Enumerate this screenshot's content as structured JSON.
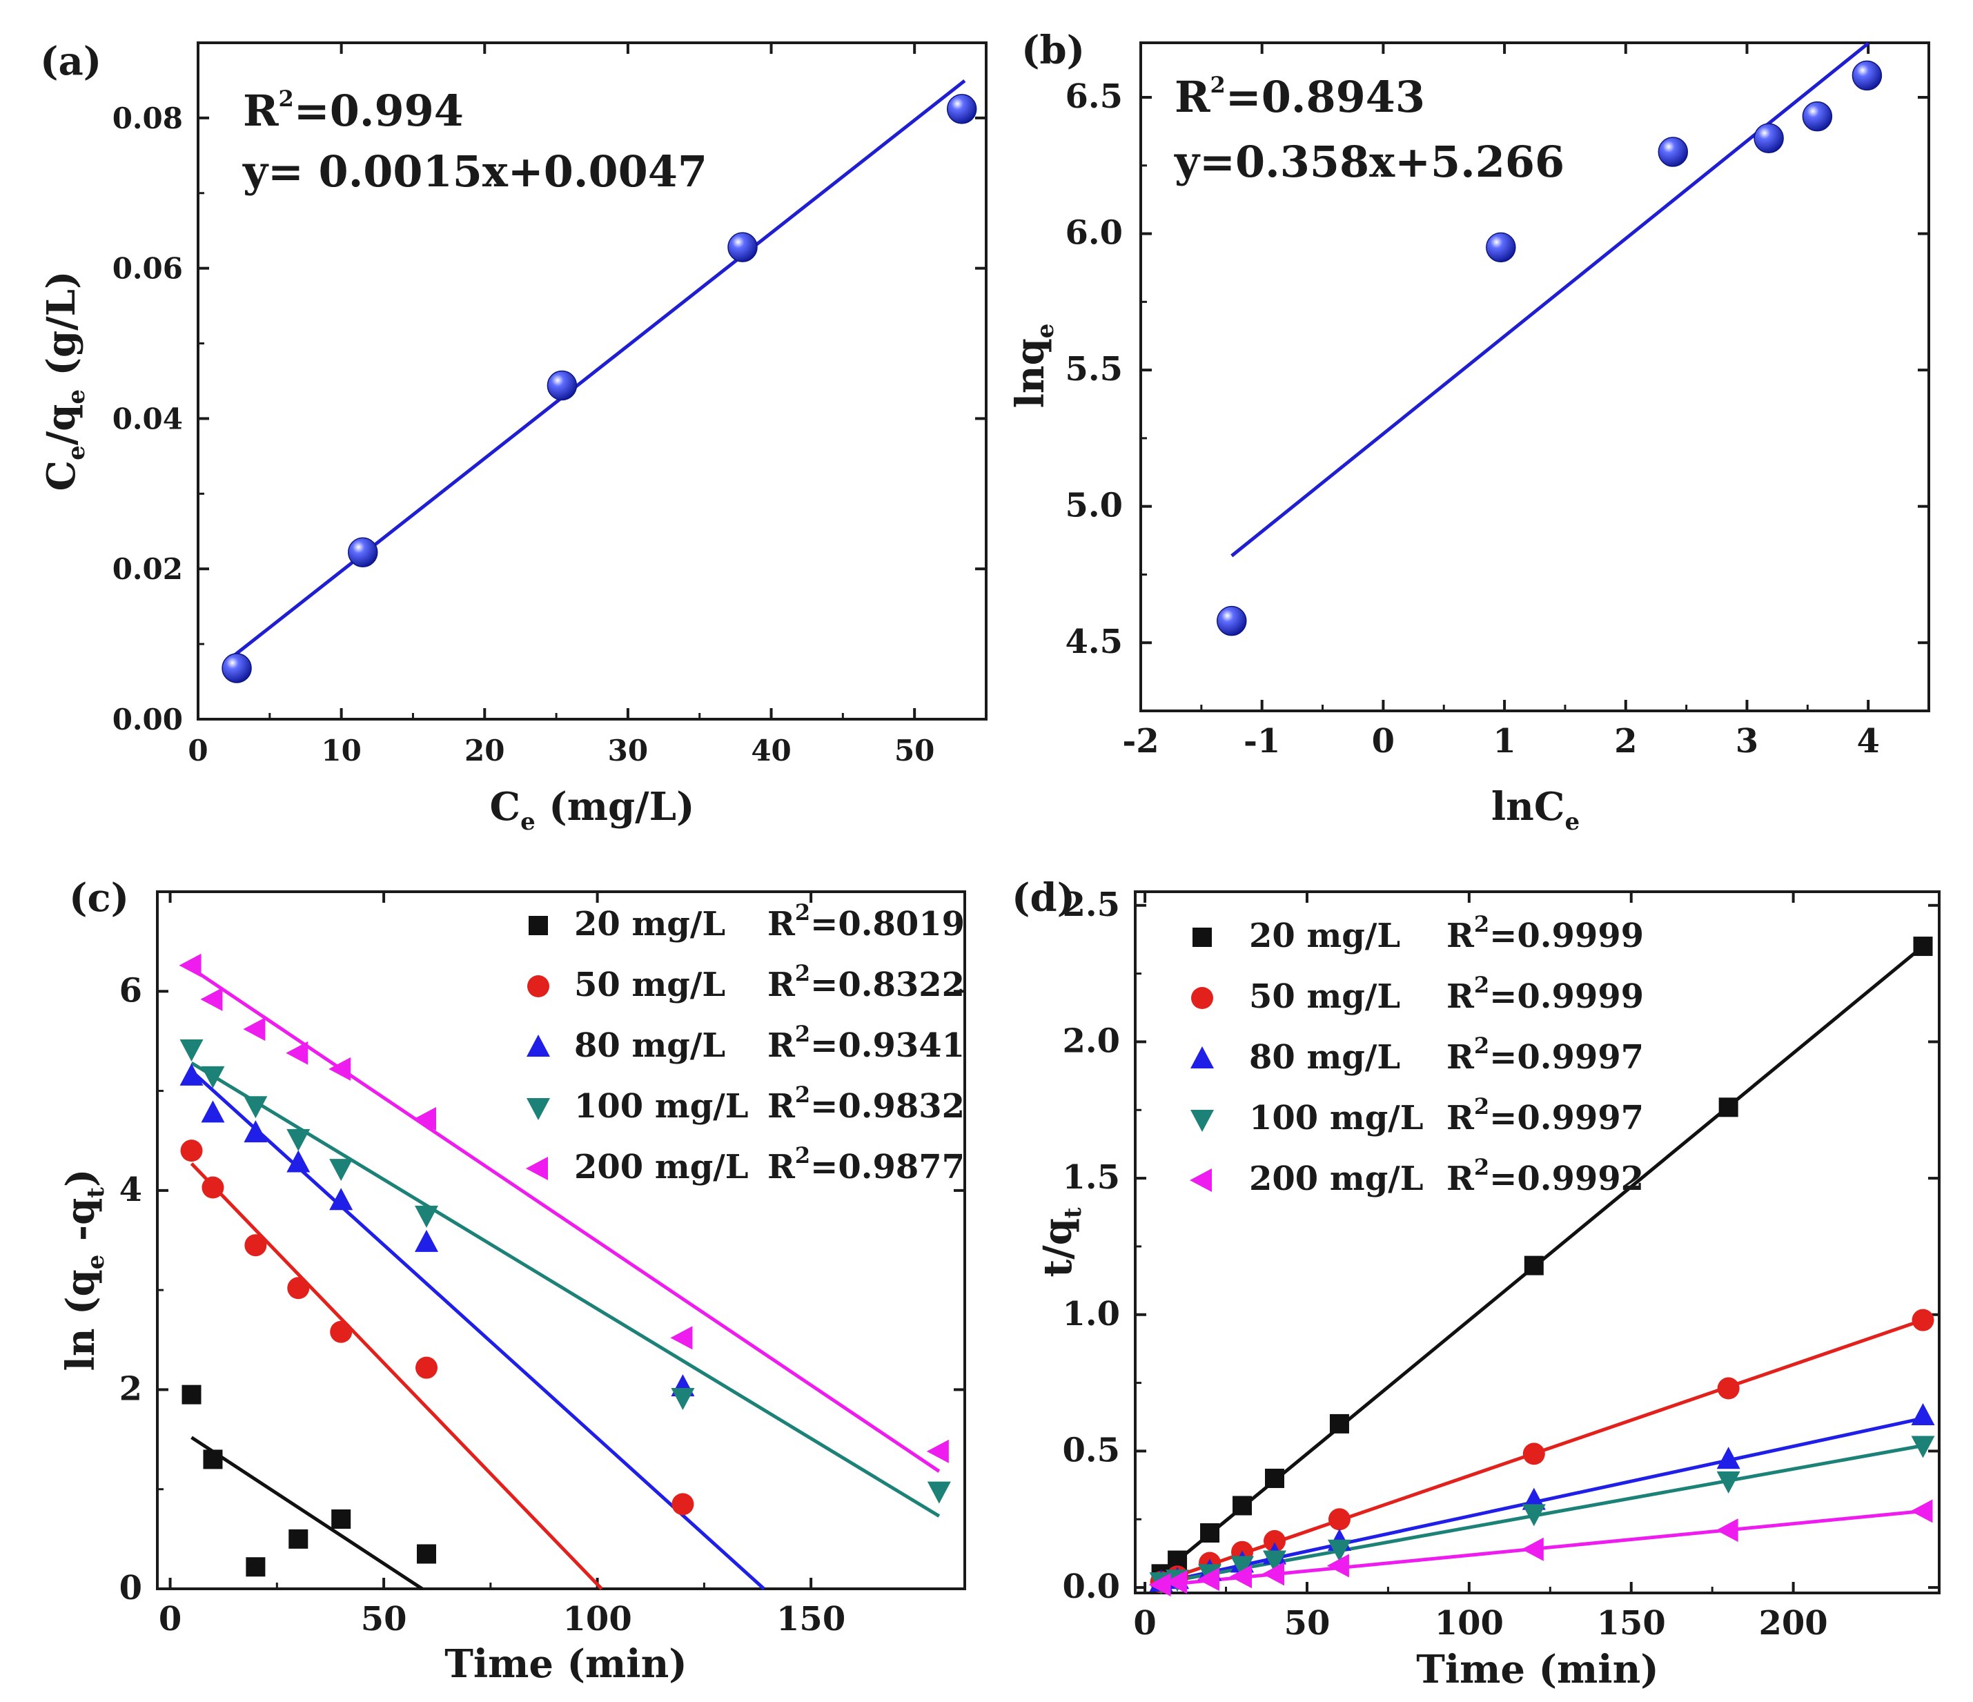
{
  "figure": {
    "colors": {
      "axis": "#1a1a1a",
      "fit_blue": "#1f1fd1",
      "marker_blue": "#1f32e0",
      "black": "#111111",
      "red": "#e3211c",
      "blue": "#1f1fe8",
      "teal": "#1c8277",
      "magenta": "#ef1cef"
    }
  },
  "chart_data": [
    {
      "id": "a",
      "type": "scatter",
      "panel_label": "(a)",
      "xlabel_main": "C",
      "xlabel_sub": "e",
      "xlabel_rest": " (mg/L)",
      "ylabel_main": "C",
      "ylabel_sub": "e",
      "ylabel_mid": "/q",
      "ylabel_sub2": "e",
      "ylabel_rest": " (g/L)",
      "xlim": [
        0,
        55
      ],
      "ylim": [
        0,
        0.09
      ],
      "xticks": [
        0,
        10,
        20,
        30,
        40,
        50
      ],
      "xtick_labels": [
        "0",
        "10",
        "20",
        "30",
        "40",
        "50"
      ],
      "yticks": [
        0,
        0.02,
        0.04,
        0.06,
        0.08
      ],
      "ytick_labels": [
        "0.00",
        "0.02",
        "0.04",
        "0.06",
        "0.08"
      ],
      "annotation_r2_prefix": "R",
      "annotation_r2_sup": "2",
      "annotation_r2_value": "=0.994",
      "annotation_equation": "y= 0.0015x+0.0047",
      "points": {
        "x": [
          2.7,
          11.5,
          25.4,
          38.0,
          53.3
        ],
        "y": [
          0.0068,
          0.0222,
          0.0444,
          0.0628,
          0.0812
        ]
      },
      "fit": {
        "slope": 0.0015,
        "intercept": 0.0047,
        "x_range": [
          2.2,
          53.5
        ]
      },
      "marker": "sphere"
    },
    {
      "id": "b",
      "type": "scatter",
      "panel_label": "(b)",
      "xlabel_main": "lnC",
      "xlabel_sub": "e",
      "ylabel_main": "lnq",
      "ylabel_sub": "e",
      "xlim": [
        -2,
        4.5
      ],
      "ylim": [
        4.25,
        6.7
      ],
      "xticks": [
        -2,
        -1,
        0,
        1,
        2,
        3,
        4
      ],
      "xtick_labels": [
        "-2",
        "-1",
        "0",
        "1",
        "2",
        "3",
        "4"
      ],
      "yticks": [
        4.5,
        5.0,
        5.5,
        6.0,
        6.5
      ],
      "ytick_labels": [
        "4.5",
        "5.0",
        "5.5",
        "6.0",
        "6.5"
      ],
      "annotation_r2_prefix": "R",
      "annotation_r2_sup": "2",
      "annotation_r2_value": "=0.8943",
      "annotation_equation": "y=0.358x+5.266",
      "points": {
        "x": [
          -1.25,
          0.97,
          2.39,
          3.18,
          3.58,
          3.99
        ],
        "y": [
          4.58,
          5.95,
          6.3,
          6.35,
          6.43,
          6.58
        ]
      },
      "fit": {
        "slope": 0.358,
        "intercept": 5.266,
        "x_range": [
          -1.25,
          4.0
        ]
      },
      "marker": "sphere"
    },
    {
      "id": "c",
      "type": "scatter",
      "panel_label": "(c)",
      "xlabel": "Time (min)",
      "ylabel_main": "ln (q",
      "ylabel_sub": "e",
      "ylabel_mid": " -q",
      "ylabel_sub2": "t",
      "ylabel_rest": ")",
      "xlim": [
        -3,
        186
      ],
      "ylim": [
        0,
        7
      ],
      "xticks": [
        0,
        50,
        100,
        150
      ],
      "xtick_labels": [
        "0",
        "50",
        "100",
        "150"
      ],
      "yticks": [
        0,
        2,
        4,
        6
      ],
      "ytick_labels": [
        "0",
        "2",
        "4",
        "6"
      ],
      "series": [
        {
          "name": "20 mg/L",
          "r2": "=0.8019",
          "marker": "square",
          "color": "#111111",
          "x": [
            5,
            10,
            20,
            30,
            40,
            60
          ],
          "y": [
            1.95,
            1.3,
            0.22,
            0.5,
            0.7,
            0.35
          ],
          "fit": {
            "x": [
              5,
              59
            ],
            "y": [
              1.52,
              0
            ]
          }
        },
        {
          "name": "50 mg/L",
          "r2": "=0.8322",
          "marker": "circle",
          "color": "#e3211c",
          "x": [
            5,
            10,
            20,
            30,
            40,
            60,
            120
          ],
          "y": [
            4.4,
            4.03,
            3.45,
            3.02,
            2.58,
            2.22,
            0.85
          ],
          "fit": {
            "x": [
              5,
              101
            ],
            "y": [
              4.27,
              0
            ]
          }
        },
        {
          "name": "80 mg/L",
          "r2": "=0.9341",
          "marker": "triangle-up",
          "color": "#1f1fe8",
          "x": [
            5,
            10,
            20,
            30,
            40,
            60,
            120
          ],
          "y": [
            5.15,
            4.78,
            4.58,
            4.28,
            3.9,
            3.48,
            2.03
          ],
          "fit": {
            "x": [
              5,
              139
            ],
            "y": [
              5.2,
              0
            ]
          }
        },
        {
          "name": "100 mg/L",
          "r2": "=0.9832",
          "marker": "triangle-down",
          "color": "#1c8277",
          "x": [
            5,
            10,
            20,
            30,
            40,
            60,
            120,
            180
          ],
          "y": [
            5.42,
            5.15,
            4.85,
            4.52,
            4.22,
            3.75,
            1.92,
            0.98
          ],
          "fit": {
            "x": [
              5,
              180
            ],
            "y": [
              5.28,
              0.73
            ]
          }
        },
        {
          "name": "200 mg/L",
          "r2": "=0.9877",
          "marker": "triangle-left",
          "color": "#ef1cef",
          "x": [
            5,
            10,
            20,
            30,
            40,
            60,
            120,
            180
          ],
          "y": [
            6.26,
            5.92,
            5.62,
            5.38,
            5.22,
            4.72,
            2.52,
            1.38
          ],
          "fit": {
            "x": [
              5,
              180
            ],
            "y": [
              6.23,
              1.18
            ]
          }
        }
      ],
      "legend_r_prefix": "R",
      "legend_r_sup": "2",
      "legend_position": "top-right"
    },
    {
      "id": "d",
      "type": "scatter",
      "panel_label": "(d)",
      "xlabel": "Time (min)",
      "ylabel_main": "t/q",
      "ylabel_sub": "t",
      "xlim": [
        -3,
        245
      ],
      "ylim": [
        -0.02,
        2.55
      ],
      "xticks": [
        0,
        50,
        100,
        150,
        200
      ],
      "xtick_labels": [
        "0",
        "50",
        "100",
        "150",
        "200"
      ],
      "yticks": [
        0.0,
        0.5,
        1.0,
        1.5,
        2.0,
        2.5
      ],
      "ytick_labels": [
        "0.0",
        "0.5",
        "1.0",
        "1.5",
        "2.0",
        "2.5"
      ],
      "series": [
        {
          "name": "20 mg/L",
          "r2": "=0.9999",
          "marker": "square",
          "color": "#111111",
          "x": [
            5,
            10,
            20,
            30,
            40,
            60,
            120,
            180,
            240
          ],
          "y": [
            0.05,
            0.1,
            0.2,
            0.3,
            0.4,
            0.6,
            1.18,
            1.76,
            2.35
          ],
          "fit": {
            "x": [
              2,
              240
            ],
            "y": [
              0.02,
              2.35
            ]
          }
        },
        {
          "name": "50 mg/L",
          "r2": "=0.9999",
          "marker": "circle",
          "color": "#e3211c",
          "x": [
            5,
            10,
            20,
            30,
            40,
            60,
            120,
            180,
            240
          ],
          "y": [
            0.02,
            0.04,
            0.09,
            0.13,
            0.17,
            0.25,
            0.49,
            0.73,
            0.98
          ],
          "fit": {
            "x": [
              2,
              240
            ],
            "y": [
              0.01,
              0.98
            ]
          }
        },
        {
          "name": "80 mg/L",
          "r2": "=0.9997",
          "marker": "triangle-up",
          "color": "#1f1fe8",
          "x": [
            5,
            10,
            20,
            30,
            40,
            60,
            120,
            180,
            240
          ],
          "y": [
            0.02,
            0.03,
            0.06,
            0.09,
            0.12,
            0.17,
            0.32,
            0.47,
            0.63
          ],
          "fit": {
            "x": [
              2,
              240
            ],
            "y": [
              0.01,
              0.62
            ]
          }
        },
        {
          "name": "100 mg/L",
          "r2": "=0.9997",
          "marker": "triangle-down",
          "color": "#1c8277",
          "x": [
            5,
            10,
            20,
            30,
            40,
            60,
            120,
            180,
            240
          ],
          "y": [
            0.02,
            0.03,
            0.05,
            0.08,
            0.1,
            0.14,
            0.27,
            0.39,
            0.52
          ],
          "fit": {
            "x": [
              2,
              240
            ],
            "y": [
              0.01,
              0.52
            ]
          }
        },
        {
          "name": "200 mg/L",
          "r2": "=0.9992",
          "marker": "triangle-left",
          "color": "#ef1cef",
          "x": [
            5,
            10,
            20,
            30,
            40,
            60,
            120,
            180,
            240
          ],
          "y": [
            0.01,
            0.02,
            0.03,
            0.04,
            0.05,
            0.08,
            0.14,
            0.21,
            0.28
          ],
          "fit": {
            "x": [
              2,
              240
            ],
            "y": [
              0.005,
              0.28
            ]
          }
        }
      ],
      "legend_r_prefix": "R",
      "legend_r_sup": "2",
      "legend_position": "top-left"
    }
  ]
}
